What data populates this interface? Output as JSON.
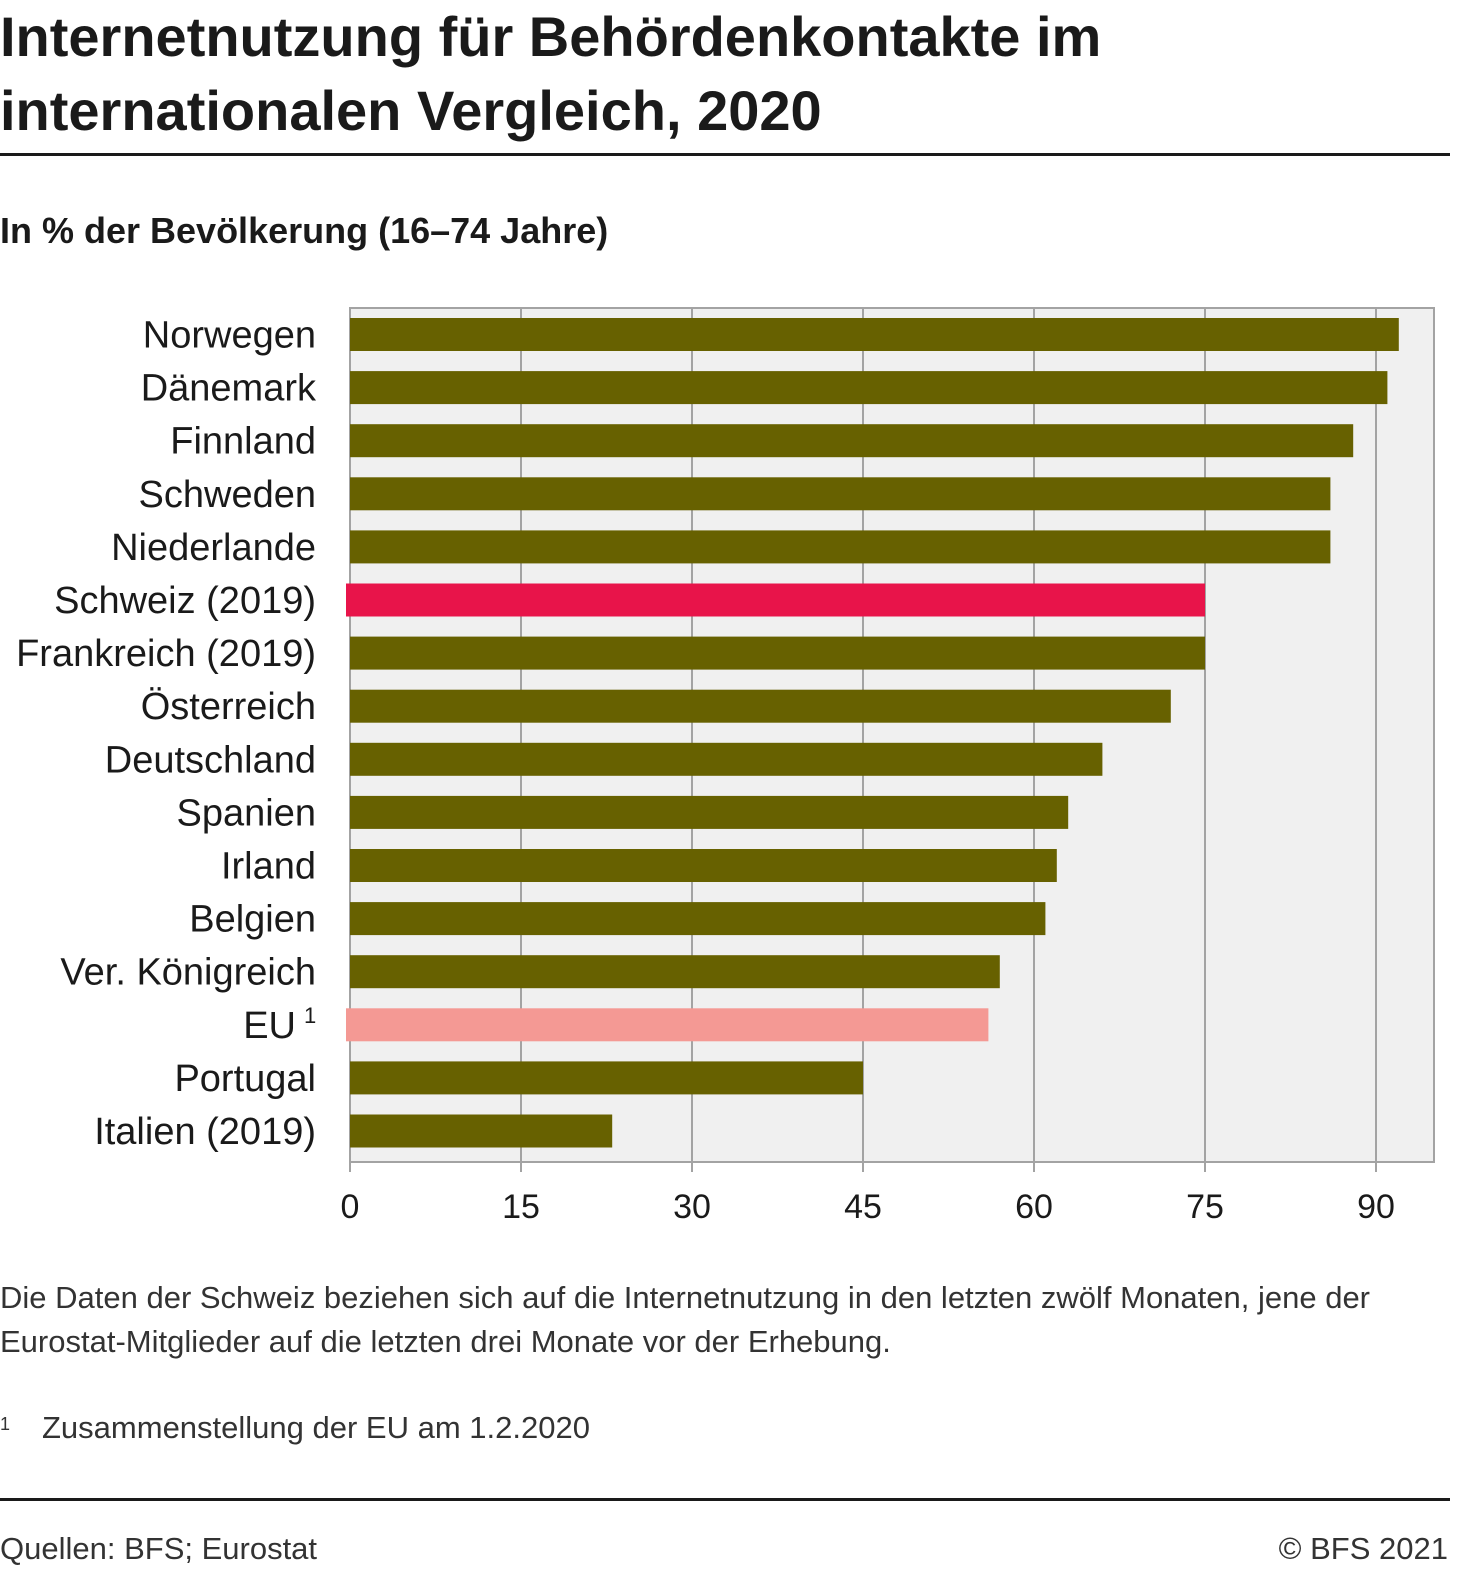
{
  "header": {
    "title_line1": "Internetnutzung für Behördenkontakte im",
    "title_line2": "internationalen Vergleich, 2020",
    "subtitle": "In % der Bevölkerung (16–74 Jahre)"
  },
  "chart_data": {
    "type": "bar",
    "orientation": "horizontal",
    "categories": [
      "Norwegen",
      "Dänemark",
      "Finnland",
      "Schweden",
      "Niederlande",
      "Schweiz (2019)",
      "Frankreich (2019)",
      "Österreich",
      "Deutschland",
      "Spanien",
      "Irland",
      "Belgien",
      "Ver. Königreich",
      "EU",
      "Portugal",
      "Italien (2019)"
    ],
    "category_notes": [
      "",
      "",
      "",
      "",
      "",
      "",
      "",
      "",
      "",
      "",
      "",
      "",
      "",
      "1",
      "",
      ""
    ],
    "values": [
      92,
      91,
      88,
      86,
      86,
      75,
      75,
      72,
      66,
      63,
      62,
      61,
      57,
      56,
      45,
      23
    ],
    "bar_colors": [
      "#676100",
      "#676100",
      "#676100",
      "#676100",
      "#676100",
      "#e8144a",
      "#676100",
      "#676100",
      "#676100",
      "#676100",
      "#676100",
      "#676100",
      "#676100",
      "#f49994",
      "#676100",
      "#676100"
    ],
    "xticks": [
      0,
      15,
      30,
      45,
      60,
      75,
      90
    ],
    "xlim": [
      0,
      95
    ],
    "grid": true,
    "plot_background": "#f0f0f0",
    "gridline_color": "#a3a3a3"
  },
  "notes": {
    "text": "Die Daten der Schweiz beziehen sich auf die Internetnutzung in den letzten zwölf Monaten, jene der Eurostat-Mitglieder auf die letzten drei Monate vor der Erhebung.",
    "footnote_marker": "1",
    "footnote_text": "Zusammenstellung der EU am 1.2.2020"
  },
  "footer": {
    "source": "Quellen: BFS; Eurostat",
    "copyright": "© BFS 2021"
  }
}
